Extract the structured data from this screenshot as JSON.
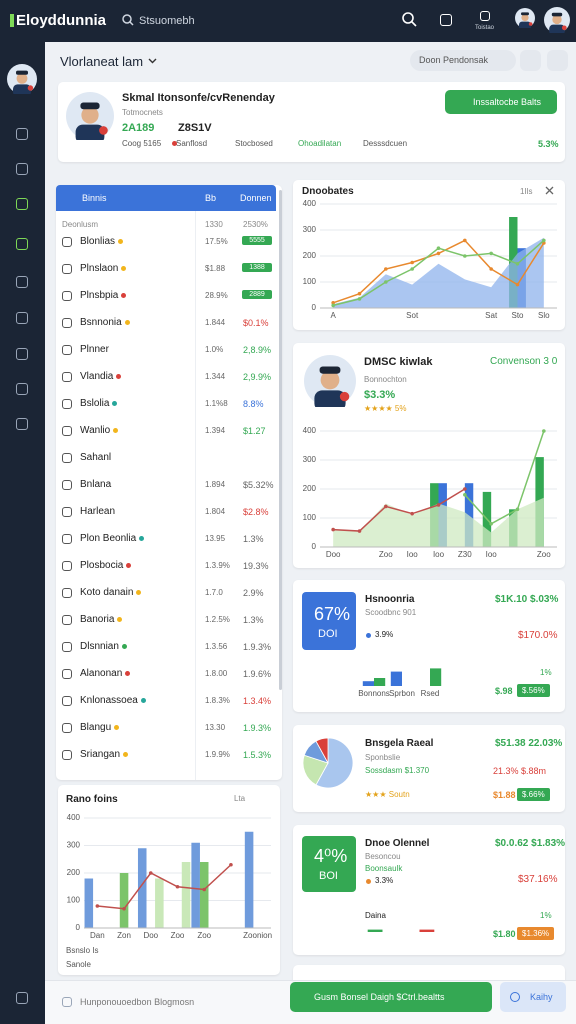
{
  "topbar": {
    "logo": "Eloyddunnia",
    "search": "Stsuomebh",
    "icon_label": "Toistao"
  },
  "subheader": {
    "title": "Vlorlaneat lam",
    "pill": "Doon Pendonsak"
  },
  "profile": {
    "name": "Skmal Itonsonfe/cvRenenday",
    "role": "Totmocnets",
    "stats": [
      "2A189",
      "Z8S1V"
    ],
    "meta": [
      "Coog 5165",
      "Sanflosd",
      "Stocbosed",
      "Ohoadilatan",
      "Desssdcuen"
    ],
    "change": "5.3%",
    "button": "Inssaltocbe Balts"
  },
  "list": {
    "title": "Binnis",
    "col1": "Bb",
    "col2": "Donnen",
    "group": "Deonlusm",
    "group_value": "1330",
    "group_change": "2530%",
    "rows": [
      {
        "name": "Blonlias",
        "dot": "#f2b51c",
        "value": "17.5%",
        "change": "5555",
        "badge": "#34a853"
      },
      {
        "name": "Plnslaon",
        "dot": "#f2b51c",
        "value": "$1.88",
        "change": "1388",
        "badge": "#34a853"
      },
      {
        "name": "Plnsbpia",
        "dot": "#d9403a",
        "value": "28.9%",
        "change": "2889",
        "badge": "#34a853"
      },
      {
        "name": "Bsnnonia",
        "dot": "#f2b51c",
        "value": "1.844",
        "change": "$0.1%",
        "color": "#d9403a"
      },
      {
        "name": "Plnner",
        "value": "1.0%",
        "change": "2,8.9%",
        "color": "#34a853"
      },
      {
        "name": "Vlandia",
        "dot": "#d9403a",
        "value": "1.344",
        "change": "2,9.9%",
        "color": "#34a853"
      },
      {
        "name": "Bslolia",
        "dot": "#26a69a",
        "value": "1.1%8",
        "change": "8.8%",
        "color": "#3b73d9"
      },
      {
        "name": "Wanlio",
        "dot": "#f2b51c",
        "value": "1.394",
        "change": "$1.27",
        "color": "#34a853"
      },
      {
        "name": "Sahanl"
      },
      {
        "name": "Bnlana",
        "value": "1.894",
        "change": "$5.32%",
        "color": "#666666"
      },
      {
        "name": "Harlean",
        "value": "1.804",
        "change": "$2.8%",
        "color": "#d9403a"
      },
      {
        "name": "Plon Beonlia",
        "dot": "#26a69a",
        "value": "13.95",
        "change": "1.3%",
        "color": "#666666"
      },
      {
        "name": "Plosbocia",
        "dot": "#d9403a",
        "value": "1.3.9%",
        "change": "19.3%",
        "color": "#666666"
      },
      {
        "name": "Koto danain",
        "dot": "#f2b51c",
        "value": "1.7.0",
        "change": "2.9%",
        "color": "#666666"
      },
      {
        "name": "Banoria",
        "dot": "#f2b51c",
        "value": "1.2.5%",
        "change": "1.3%",
        "color": "#666666"
      },
      {
        "name": "Dlsnnian",
        "dot": "#34a853",
        "value": "1.3.56",
        "change": "1.9.3%",
        "color": "#666666"
      },
      {
        "name": "Alanonan",
        "dot": "#d9403a",
        "value": "1.8.00",
        "change": "1.9.6%",
        "color": "#666666"
      },
      {
        "name": "Knlonassoea",
        "dot": "#26a69a",
        "value": "1.8.3%",
        "change": "1.3.4%",
        "color": "#d9403a"
      },
      {
        "name": "Blangu",
        "dot": "#f2b51c",
        "value": "13.30",
        "change": "1.9.3%",
        "color": "#34a853"
      },
      {
        "name": "Sriangan",
        "dot": "#f2b51c",
        "value": "1.9.9%",
        "change": "1.5.3%",
        "color": "#34a853"
      }
    ]
  },
  "trend": {
    "title": "Rano foins",
    "badge": "Lta",
    "legend": [
      "Bsnslo Is",
      "Sanole"
    ],
    "chart": {
      "ylim": [
        0,
        400
      ],
      "yticks": [
        0,
        100,
        200,
        300,
        400
      ],
      "categories": [
        "Dan",
        "Zon",
        "Doo",
        "Zoo",
        "Zoo",
        null,
        "Zoonion"
      ],
      "series": [
        {
          "type": "bar",
          "color": "#6f9bdc",
          "values": [
            180,
            null,
            290,
            null,
            310,
            null,
            350
          ]
        },
        {
          "type": "bar",
          "color": "#7cc46a",
          "values": [
            null,
            200,
            null,
            null,
            240,
            null,
            null
          ]
        },
        {
          "type": "bar",
          "color": "#c9e8b8",
          "values": [
            null,
            null,
            180,
            240,
            null,
            null,
            null
          ]
        },
        {
          "type": "line",
          "color": "#c0504d",
          "values": [
            80,
            70,
            200,
            150,
            140,
            230,
            null
          ]
        }
      ]
    }
  },
  "overview": {
    "title": "Dnoobates",
    "badge": "1Ils",
    "chart": {
      "ylim": [
        0,
        400
      ],
      "yticks": [
        0,
        100,
        200,
        300,
        400
      ],
      "categories": [
        "A",
        null,
        null,
        "Sot",
        null,
        null,
        "Sat",
        "Sto",
        "Slo"
      ],
      "series": [
        {
          "type": "area",
          "color": "#8fb3ec",
          "values": [
            15,
            40,
            130,
            90,
            170,
            110,
            80,
            210,
            270
          ]
        },
        {
          "type": "line",
          "color": "#e8892e",
          "values": [
            20,
            55,
            150,
            175,
            210,
            260,
            150,
            90,
            250
          ]
        },
        {
          "type": "line",
          "color": "#7cc46a",
          "values": [
            10,
            35,
            100,
            150,
            230,
            200,
            210,
            170,
            260
          ]
        },
        {
          "type": "bar",
          "color": "#34a853",
          "values": [
            null,
            null,
            null,
            null,
            null,
            null,
            null,
            350,
            null
          ]
        },
        {
          "type": "bar",
          "color": "#3b73d9",
          "values": [
            null,
            null,
            null,
            null,
            null,
            null,
            null,
            230,
            null
          ]
        }
      ]
    }
  },
  "agent": {
    "name": "DMSC kiwlak",
    "sub": "Bonnochton",
    "value": "$3.3%",
    "rating": "★★★★ 5%",
    "right": "Convenson 3 0",
    "chart": {
      "ylim": [
        0,
        400
      ],
      "yticks": [
        0,
        100,
        200,
        300,
        400
      ],
      "categories": [
        "Doo",
        null,
        "Zoo",
        "Ioo",
        "Ioo",
        "Z30",
        "Ioo",
        null,
        "Zoo"
      ],
      "series": [
        {
          "type": "area",
          "color": "#cfe9c1",
          "values": [
            60,
            55,
            150,
            110,
            150,
            120,
            50,
            130,
            170
          ]
        },
        {
          "type": "line",
          "color": "#c0504d",
          "values": [
            60,
            55,
            140,
            115,
            145,
            200,
            null,
            null,
            null
          ]
        },
        {
          "type": "line",
          "color": "#7cc46a",
          "values": [
            null,
            null,
            null,
            null,
            null,
            180,
            80,
            130,
            400
          ]
        },
        {
          "type": "bar",
          "color": "#34a853",
          "values": [
            null,
            null,
            null,
            null,
            220,
            null,
            190,
            130,
            310
          ]
        },
        {
          "type": "bar",
          "color": "#3b73d9",
          "values": [
            null,
            null,
            null,
            null,
            220,
            220,
            null,
            null,
            null
          ]
        }
      ]
    }
  },
  "card_a": {
    "big": "67%",
    "big_sub": "DOI",
    "title": "Hsnoonria",
    "sub": "Scoodbnc 901",
    "dot_change": "3.9%",
    "right": "$1K.10 $.03%",
    "right2": "$170.0%",
    "foot": "$.98",
    "foot_badge": "$.56%",
    "foot_note": "1%",
    "chart": {
      "ylim": [
        0,
        25
      ],
      "categories": [
        "Bonnons",
        "Sprbon",
        "Rsed"
      ],
      "series": [
        {
          "type": "bar",
          "color": "#3b73d9",
          "values": [
            6,
            18,
            null
          ]
        },
        {
          "type": "bar",
          "color": "#34a853",
          "values": [
            10,
            null,
            22
          ]
        }
      ]
    }
  },
  "card_b": {
    "title": "Bnsgela Raeal",
    "sub": "Sponbslie",
    "line": "Sossdasm $1.370",
    "rating": "★★★ Soutn",
    "right": "$51.38 22.03%",
    "right2": "21.3% $.88m",
    "foot": "$1.88",
    "foot_badge": "$.66%",
    "pie": {
      "values": [
        58,
        22,
        12,
        8
      ],
      "colors": [
        "#a9c6ee",
        "#c5e6b0",
        "#6f9bdc",
        "#d9403a"
      ]
    }
  },
  "card_c": {
    "big": "4⁰%",
    "big_sub": "BOI",
    "title": "Dnoe Olennel",
    "sub": "Besoncou",
    "line": "Boonsaulk",
    "dot_change": "3.3%",
    "right": "$0.0.62 $1.83%",
    "right2": "$37.16%",
    "label": "Daina",
    "foot": "$1.80",
    "foot_badge": "$1.36%",
    "foot_note": "1%",
    "chart": {
      "ylim": [
        0,
        10
      ],
      "categories": [
        null,
        null
      ],
      "series": [
        {
          "type": "bar",
          "color": "#34a853",
          "values": [
            4,
            null
          ]
        },
        {
          "type": "bar",
          "color": "#d9403a",
          "values": [
            null,
            4
          ]
        }
      ]
    }
  },
  "footer": {
    "text": "Hunponouoedbon Blogmosn",
    "primary": "Gusm Bonsel Daigh $Ctrl.bealtts",
    "secondary": "Kaihy"
  }
}
